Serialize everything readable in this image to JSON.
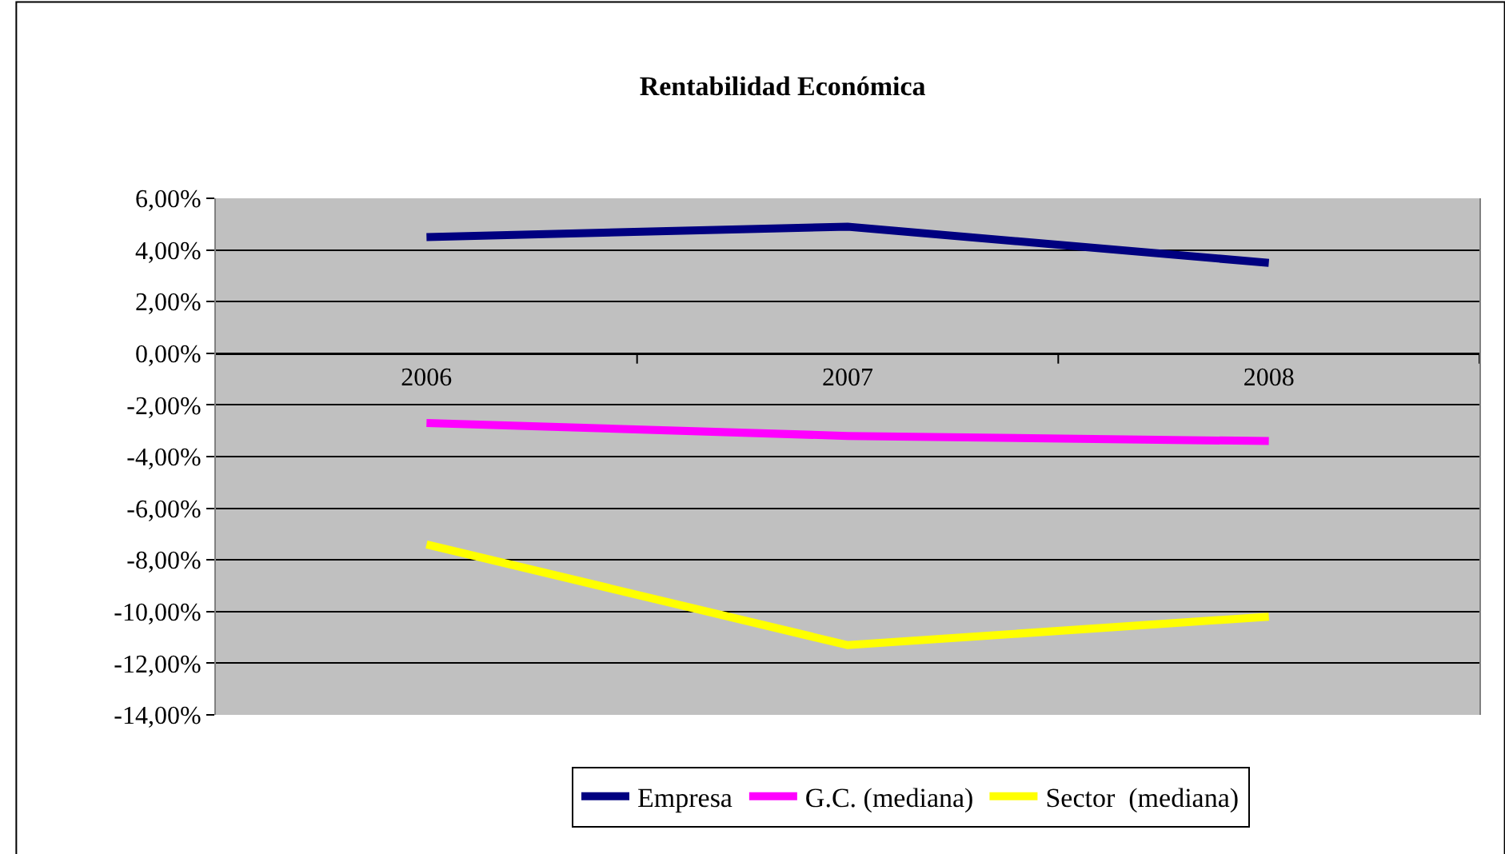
{
  "chart_data": {
    "type": "line",
    "title": "Rentabilidad Económica",
    "categories": [
      "2006",
      "2007",
      "2008"
    ],
    "series": [
      {
        "name": "Empresa",
        "color": "#000080",
        "values": [
          4.5,
          4.9,
          3.5
        ]
      },
      {
        "name": "G.C. (mediana)",
        "color": "#ff00ff",
        "values": [
          -2.7,
          -3.2,
          -3.4
        ]
      },
      {
        "name": "Sector  (mediana)",
        "color": "#ffff00",
        "values": [
          -7.4,
          -11.3,
          -10.2
        ]
      }
    ],
    "ylim": [
      -14,
      6
    ],
    "yticks": [
      {
        "value": 6,
        "label": "6,00%"
      },
      {
        "value": 4,
        "label": "4,00%"
      },
      {
        "value": 2,
        "label": "2,00%"
      },
      {
        "value": 0,
        "label": "0,00%"
      },
      {
        "value": -2,
        "label": "-2,00%"
      },
      {
        "value": -4,
        "label": "-4,00%"
      },
      {
        "value": -6,
        "label": "-6,00%"
      },
      {
        "value": -8,
        "label": "-8,00%"
      },
      {
        "value": -10,
        "label": "-10,00%"
      },
      {
        "value": -12,
        "label": "-12,00%"
      },
      {
        "value": -14,
        "label": "-14,00%"
      }
    ],
    "grid": "y",
    "legend": "bottom",
    "marker": "none",
    "line_style": "solid"
  }
}
